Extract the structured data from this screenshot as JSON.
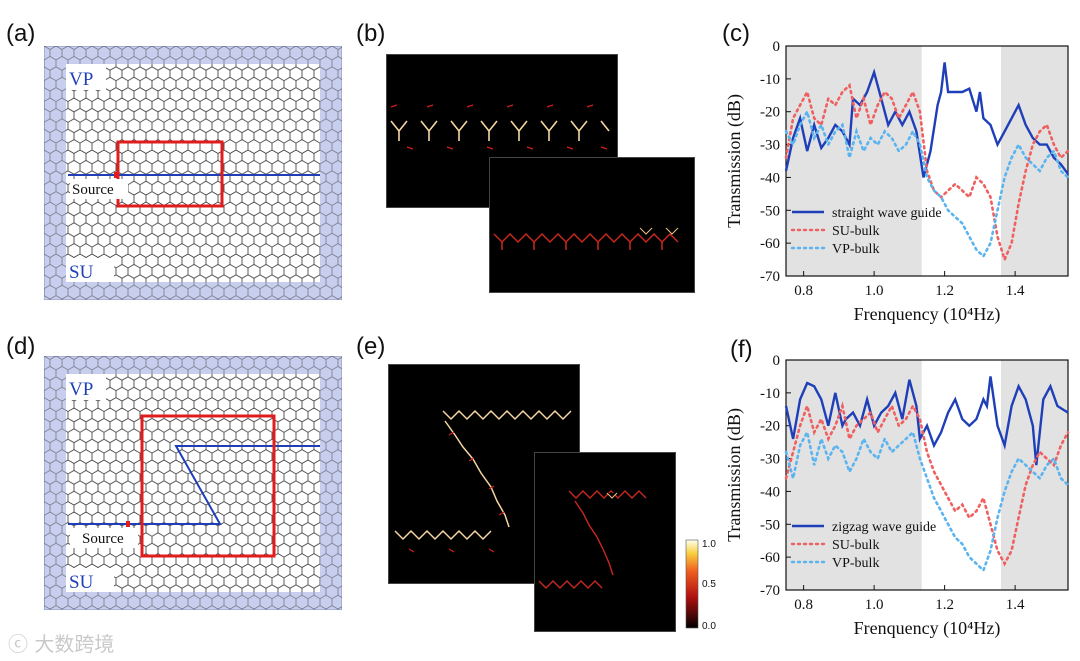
{
  "panels": {
    "a": "(a)",
    "b": "(b)",
    "c": "(c)",
    "d": "(d)",
    "e": "(e)",
    "f": "(f)"
  },
  "lattice_a": {
    "top_label": "VP",
    "bottom_label": "SU",
    "source_label": "Source"
  },
  "lattice_d": {
    "top_label": "VP",
    "bottom_label": "SU",
    "source_label": "Source"
  },
  "colorbar": {
    "ticks": [
      "1.0",
      "0.5",
      "0.0"
    ]
  },
  "watermark": {
    "text": "大数跨境"
  },
  "colors": {
    "waveguide": "#1f3fb8",
    "su_bulk": "#f06060",
    "vp_bulk": "#5ab4f0",
    "lattice_fill": "#c8cfee",
    "frame": "#e01c1c",
    "shade": "#e2e2e2"
  },
  "chart_data": [
    {
      "type": "line",
      "xlabel": "Frenquency (10⁴Hz)",
      "ylabel": "Transmission (dB)",
      "xlim": [
        0.75,
        1.55
      ],
      "ylim": [
        -70,
        0
      ],
      "xticks": [
        "0.8",
        "1.0",
        "1.2",
        "1.4"
      ],
      "yticks": [
        "0",
        "-10",
        "-20",
        "-30",
        "-40",
        "-50",
        "-60",
        "-70"
      ],
      "shaded_x": [
        [
          0.75,
          1.135
        ],
        [
          1.36,
          1.55
        ]
      ],
      "legend": "bottom-left",
      "series": [
        {
          "name": "straight wave guide",
          "style": "solid",
          "x": [
            0.75,
            0.77,
            0.79,
            0.81,
            0.83,
            0.85,
            0.87,
            0.89,
            0.91,
            0.93,
            0.94,
            0.96,
            0.98,
            1.0,
            1.02,
            1.04,
            1.06,
            1.08,
            1.1,
            1.12,
            1.14,
            1.16,
            1.18,
            1.19,
            1.2,
            1.21,
            1.23,
            1.25,
            1.27,
            1.29,
            1.3,
            1.31,
            1.33,
            1.35,
            1.37,
            1.39,
            1.41,
            1.43,
            1.45,
            1.47,
            1.49,
            1.51,
            1.53,
            1.55
          ],
          "y": [
            -38,
            -28,
            -22,
            -32,
            -24,
            -31,
            -28,
            -24,
            -26,
            -30,
            -16,
            -18,
            -14,
            -8,
            -16,
            -24,
            -20,
            -24,
            -20,
            -26,
            -40,
            -32,
            -18,
            -14,
            -5,
            -14,
            -14,
            -14,
            -13,
            -20,
            -14,
            -22,
            -24,
            -30,
            -26,
            -22,
            -18,
            -24,
            -28,
            -30,
            -30,
            -34,
            -36,
            -39
          ]
        },
        {
          "name": "SU-bulk",
          "style": "dotted",
          "x": [
            0.75,
            0.77,
            0.79,
            0.81,
            0.83,
            0.85,
            0.87,
            0.89,
            0.91,
            0.93,
            0.95,
            0.97,
            0.99,
            1.01,
            1.03,
            1.05,
            1.07,
            1.09,
            1.11,
            1.13,
            1.15,
            1.17,
            1.19,
            1.21,
            1.23,
            1.25,
            1.27,
            1.29,
            1.31,
            1.33,
            1.35,
            1.37,
            1.39,
            1.41,
            1.43,
            1.45,
            1.47,
            1.49,
            1.51,
            1.53,
            1.55
          ],
          "y": [
            -34,
            -22,
            -18,
            -14,
            -22,
            -24,
            -16,
            -18,
            -14,
            -12,
            -22,
            -16,
            -24,
            -18,
            -14,
            -16,
            -22,
            -18,
            -14,
            -20,
            -38,
            -44,
            -46,
            -44,
            -42,
            -44,
            -46,
            -40,
            -42,
            -46,
            -58,
            -65,
            -60,
            -48,
            -38,
            -30,
            -26,
            -24,
            -30,
            -34,
            -32
          ]
        },
        {
          "name": "VP-bulk",
          "style": "dotted",
          "x": [
            0.75,
            0.77,
            0.79,
            0.81,
            0.83,
            0.85,
            0.87,
            0.89,
            0.91,
            0.93,
            0.95,
            0.97,
            0.99,
            1.01,
            1.03,
            1.05,
            1.07,
            1.09,
            1.11,
            1.13,
            1.15,
            1.17,
            1.19,
            1.21,
            1.23,
            1.25,
            1.27,
            1.29,
            1.31,
            1.33,
            1.35,
            1.37,
            1.39,
            1.41,
            1.43,
            1.45,
            1.47,
            1.49,
            1.51,
            1.53,
            1.55
          ],
          "y": [
            -26,
            -30,
            -24,
            -20,
            -28,
            -24,
            -30,
            -26,
            -24,
            -34,
            -26,
            -32,
            -28,
            -30,
            -26,
            -28,
            -32,
            -30,
            -26,
            -30,
            -40,
            -44,
            -46,
            -50,
            -52,
            -54,
            -58,
            -62,
            -64,
            -60,
            -50,
            -40,
            -34,
            -30,
            -34,
            -36,
            -38,
            -34,
            -32,
            -38,
            -40
          ]
        }
      ]
    },
    {
      "type": "line",
      "xlabel": "Frenquency (10⁴Hz)",
      "ylabel": "Transmission (dB)",
      "xlim": [
        0.75,
        1.55
      ],
      "ylim": [
        -70,
        0
      ],
      "xticks": [
        "0.8",
        "1.0",
        "1.2",
        "1.4"
      ],
      "yticks": [
        "0",
        "-10",
        "-20",
        "-30",
        "-40",
        "-50",
        "-60",
        "-70"
      ],
      "shaded_x": [
        [
          0.75,
          1.135
        ],
        [
          1.36,
          1.55
        ]
      ],
      "legend": "bottom-left",
      "series": [
        {
          "name": "zigzag wave guide",
          "style": "solid",
          "x": [
            0.75,
            0.77,
            0.79,
            0.81,
            0.83,
            0.85,
            0.87,
            0.89,
            0.91,
            0.92,
            0.94,
            0.96,
            0.98,
            1.0,
            1.02,
            1.04,
            1.06,
            1.08,
            1.1,
            1.12,
            1.13,
            1.15,
            1.17,
            1.19,
            1.21,
            1.23,
            1.25,
            1.27,
            1.29,
            1.31,
            1.32,
            1.33,
            1.35,
            1.37,
            1.39,
            1.41,
            1.43,
            1.45,
            1.46,
            1.48,
            1.5,
            1.52,
            1.55
          ],
          "y": [
            -14,
            -24,
            -12,
            -7,
            -8,
            -12,
            -20,
            -10,
            -20,
            -18,
            -16,
            -20,
            -12,
            -20,
            -16,
            -14,
            -10,
            -18,
            -6,
            -14,
            -24,
            -20,
            -26,
            -22,
            -16,
            -12,
            -18,
            -20,
            -18,
            -12,
            -14,
            -5,
            -20,
            -26,
            -14,
            -8,
            -12,
            -20,
            -32,
            -12,
            -8,
            -14,
            -16
          ]
        },
        {
          "name": "SU-bulk",
          "style": "dotted",
          "x": [
            0.75,
            0.77,
            0.79,
            0.81,
            0.83,
            0.85,
            0.87,
            0.89,
            0.91,
            0.93,
            0.95,
            0.97,
            0.99,
            1.01,
            1.03,
            1.05,
            1.07,
            1.09,
            1.11,
            1.13,
            1.15,
            1.17,
            1.19,
            1.21,
            1.23,
            1.25,
            1.27,
            1.29,
            1.31,
            1.33,
            1.35,
            1.37,
            1.39,
            1.41,
            1.43,
            1.45,
            1.47,
            1.49,
            1.51,
            1.53,
            1.55
          ],
          "y": [
            -36,
            -28,
            -20,
            -14,
            -22,
            -18,
            -24,
            -20,
            -14,
            -24,
            -20,
            -18,
            -16,
            -22,
            -18,
            -14,
            -20,
            -18,
            -14,
            -18,
            -28,
            -34,
            -38,
            -42,
            -46,
            -44,
            -48,
            -46,
            -42,
            -50,
            -58,
            -62,
            -58,
            -48,
            -38,
            -32,
            -28,
            -30,
            -32,
            -26,
            -22
          ]
        },
        {
          "name": "VP-bulk",
          "style": "dotted",
          "x": [
            0.75,
            0.77,
            0.79,
            0.81,
            0.83,
            0.85,
            0.87,
            0.89,
            0.91,
            0.93,
            0.95,
            0.97,
            0.99,
            1.01,
            1.03,
            1.05,
            1.07,
            1.09,
            1.11,
            1.13,
            1.15,
            1.17,
            1.19,
            1.21,
            1.23,
            1.25,
            1.27,
            1.29,
            1.31,
            1.33,
            1.35,
            1.37,
            1.39,
            1.41,
            1.43,
            1.45,
            1.47,
            1.49,
            1.51,
            1.53,
            1.55
          ],
          "y": [
            -28,
            -36,
            -26,
            -22,
            -32,
            -24,
            -30,
            -26,
            -28,
            -34,
            -30,
            -24,
            -28,
            -30,
            -24,
            -28,
            -26,
            -24,
            -22,
            -30,
            -36,
            -42,
            -46,
            -50,
            -54,
            -56,
            -60,
            -62,
            -64,
            -58,
            -48,
            -40,
            -34,
            -30,
            -32,
            -34,
            -36,
            -32,
            -30,
            -36,
            -38
          ]
        }
      ]
    }
  ]
}
